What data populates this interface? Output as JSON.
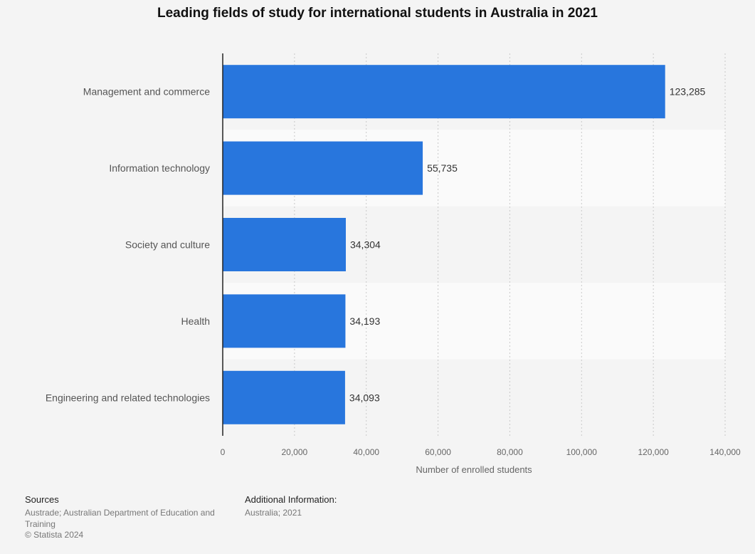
{
  "chart_data": {
    "type": "bar",
    "orientation": "horizontal",
    "title": "Leading fields of study for international students in Australia in 2021",
    "categories": [
      "Management and commerce",
      "Information technology",
      "Society and culture",
      "Health",
      "Engineering and related technologies"
    ],
    "values": [
      123285,
      55735,
      34304,
      34193,
      34093
    ],
    "value_labels": [
      "123,285",
      "55,735",
      "34,304",
      "34,193",
      "34,093"
    ],
    "xlabel": "Number of enrolled students",
    "ylabel": "",
    "xlim": [
      0,
      140000
    ],
    "x_ticks": [
      0,
      20000,
      40000,
      60000,
      80000,
      100000,
      120000,
      140000
    ],
    "x_tick_labels": [
      "0",
      "20,000",
      "40,000",
      "60,000",
      "80,000",
      "100,000",
      "120,000",
      "140,000"
    ],
    "grid": true,
    "bar_color": "#2876dd"
  },
  "footer": {
    "sources_heading": "Sources",
    "sources_text": "Austrade; Australian Department of Education and Training",
    "copyright": "© Statista 2024",
    "additional_heading": "Additional Information:",
    "additional_text": "Australia; 2021"
  }
}
